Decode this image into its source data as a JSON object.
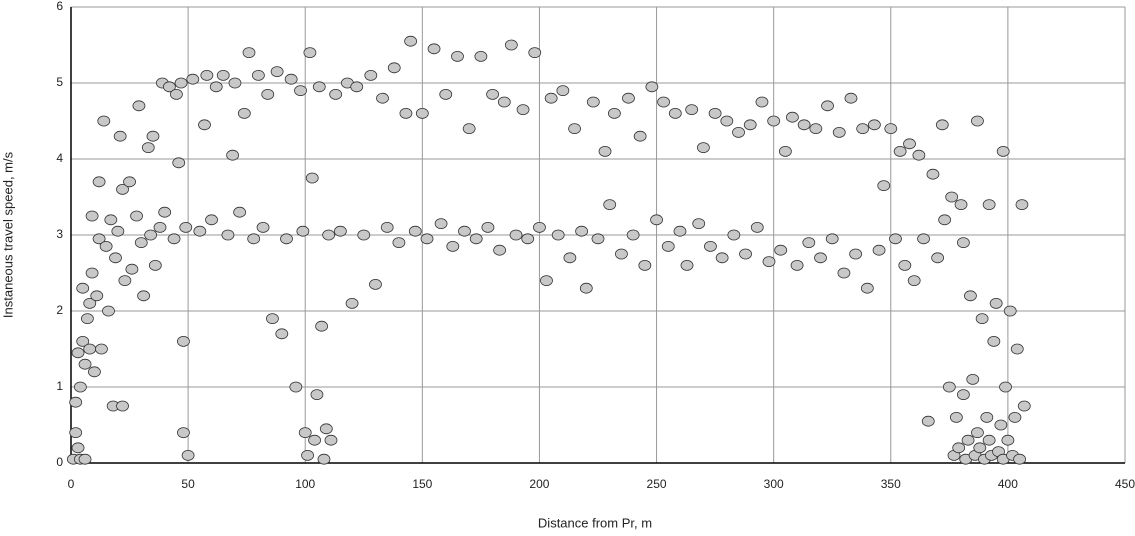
{
  "chart_data": {
    "type": "scatter",
    "x_label": "Distance from Pr, m",
    "y_label": "Instaneous travel speed, m/s",
    "xlim": [
      0,
      450
    ],
    "xticks": [
      0,
      50,
      100,
      150,
      200,
      250,
      300,
      350,
      400,
      450
    ],
    "ylim": [
      0,
      6
    ],
    "yticks": [
      0,
      1,
      2,
      3,
      4,
      5,
      6
    ],
    "grid": true,
    "color": "#c8c8c8",
    "x": [
      1,
      2,
      2,
      3,
      3,
      4,
      4,
      5,
      5,
      6,
      6,
      7,
      8,
      8,
      9,
      9,
      10,
      11,
      12,
      12,
      13,
      14,
      15,
      16,
      17,
      18,
      19,
      20,
      21,
      22,
      22,
      23,
      25,
      26,
      28,
      29,
      30,
      31,
      33,
      34,
      35,
      36,
      38,
      39,
      40,
      42,
      44,
      45,
      46,
      47,
      48,
      48,
      49,
      50,
      52,
      55,
      57,
      58,
      60,
      62,
      65,
      67,
      69,
      70,
      72,
      74,
      76,
      78,
      80,
      82,
      84,
      86,
      88,
      90,
      92,
      94,
      96,
      98,
      99,
      100,
      101,
      102,
      103,
      104,
      105,
      106,
      107,
      108,
      109,
      110,
      111,
      113,
      115,
      118,
      120,
      122,
      125,
      128,
      130,
      133,
      135,
      138,
      140,
      143,
      145,
      147,
      150,
      152,
      155,
      158,
      160,
      163,
      165,
      168,
      170,
      173,
      175,
      178,
      180,
      183,
      185,
      188,
      190,
      193,
      195,
      198,
      200,
      203,
      205,
      208,
      210,
      213,
      215,
      218,
      220,
      223,
      225,
      228,
      230,
      232,
      235,
      238,
      240,
      243,
      245,
      248,
      250,
      253,
      255,
      258,
      260,
      263,
      265,
      268,
      270,
      273,
      275,
      278,
      280,
      283,
      285,
      288,
      290,
      293,
      295,
      298,
      300,
      303,
      305,
      308,
      310,
      313,
      315,
      318,
      320,
      323,
      325,
      328,
      330,
      333,
      335,
      338,
      340,
      343,
      345,
      347,
      350,
      352,
      354,
      356,
      358,
      360,
      362,
      364,
      366,
      368,
      370,
      372,
      373,
      375,
      376,
      377,
      378,
      379,
      380,
      381,
      381,
      382,
      383,
      384,
      385,
      386,
      387,
      387,
      388,
      389,
      390,
      391,
      392,
      392,
      393,
      394,
      395,
      396,
      397,
      398,
      398,
      399,
      400,
      401,
      402,
      403,
      404,
      405,
      406,
      407
    ],
    "y": [
      0.05,
      0.4,
      0.8,
      1.45,
      0.2,
      1.0,
      0.05,
      2.3,
      1.6,
      1.3,
      0.05,
      1.9,
      2.1,
      1.5,
      2.5,
      3.25,
      1.2,
      2.2,
      2.95,
      3.7,
      1.5,
      4.5,
      2.85,
      2.0,
      3.2,
      0.75,
      2.7,
      3.05,
      4.3,
      3.6,
      0.75,
      2.4,
      3.7,
      2.55,
      3.25,
      4.7,
      2.9,
      2.2,
      4.15,
      3.0,
      4.3,
      2.6,
      3.1,
      5.0,
      3.3,
      4.95,
      2.95,
      4.85,
      3.95,
      5.0,
      1.6,
      0.4,
      3.1,
      0.1,
      5.05,
      3.05,
      4.45,
      5.1,
      3.2,
      4.95,
      5.1,
      3.0,
      4.05,
      5.0,
      3.3,
      4.6,
      5.4,
      2.95,
      5.1,
      3.1,
      4.85,
      1.9,
      5.15,
      1.7,
      2.95,
      5.05,
      1.0,
      4.9,
      3.05,
      0.4,
      0.1,
      5.4,
      3.75,
      0.3,
      0.9,
      4.95,
      1.8,
      0.05,
      0.45,
      3.0,
      0.3,
      4.85,
      3.05,
      5.0,
      2.1,
      4.95,
      3.0,
      5.1,
      2.35,
      4.8,
      3.1,
      5.2,
      2.9,
      4.6,
      5.55,
      3.05,
      4.6,
      2.95,
      5.45,
      3.15,
      4.85,
      2.85,
      5.35,
      3.05,
      4.4,
      2.95,
      5.35,
      3.1,
      4.85,
      2.8,
      4.75,
      5.5,
      3.0,
      4.65,
      2.95,
      5.4,
      3.1,
      2.4,
      4.8,
      3.0,
      4.9,
      2.7,
      4.4,
      3.05,
      2.3,
      4.75,
      2.95,
      4.1,
      3.4,
      4.6,
      2.75,
      4.8,
      3.0,
      4.3,
      2.6,
      4.95,
      3.2,
      4.75,
      2.85,
      4.6,
      3.05,
      2.6,
      4.65,
      3.15,
      4.15,
      2.85,
      4.6,
      2.7,
      4.5,
      3.0,
      4.35,
      2.75,
      4.45,
      3.1,
      4.75,
      2.65,
      4.5,
      2.8,
      4.1,
      4.55,
      2.6,
      4.45,
      2.9,
      4.4,
      2.7,
      4.7,
      2.95,
      4.35,
      2.5,
      4.8,
      2.75,
      4.4,
      2.3,
      4.45,
      2.8,
      3.65,
      4.4,
      2.95,
      4.1,
      2.6,
      4.2,
      2.4,
      4.05,
      2.95,
      0.55,
      3.8,
      2.7,
      4.45,
      3.2,
      1.0,
      3.5,
      0.1,
      0.6,
      0.2,
      3.4,
      2.9,
      0.9,
      0.05,
      0.3,
      2.2,
      1.1,
      0.1,
      4.5,
      0.4,
      0.2,
      1.9,
      0.05,
      0.6,
      3.4,
      0.3,
      0.1,
      1.6,
      2.1,
      0.15,
      0.5,
      4.1,
      0.05,
      1.0,
      0.3,
      2.0,
      0.1,
      0.6,
      1.5,
      0.05,
      3.4,
      0.75
    ]
  }
}
